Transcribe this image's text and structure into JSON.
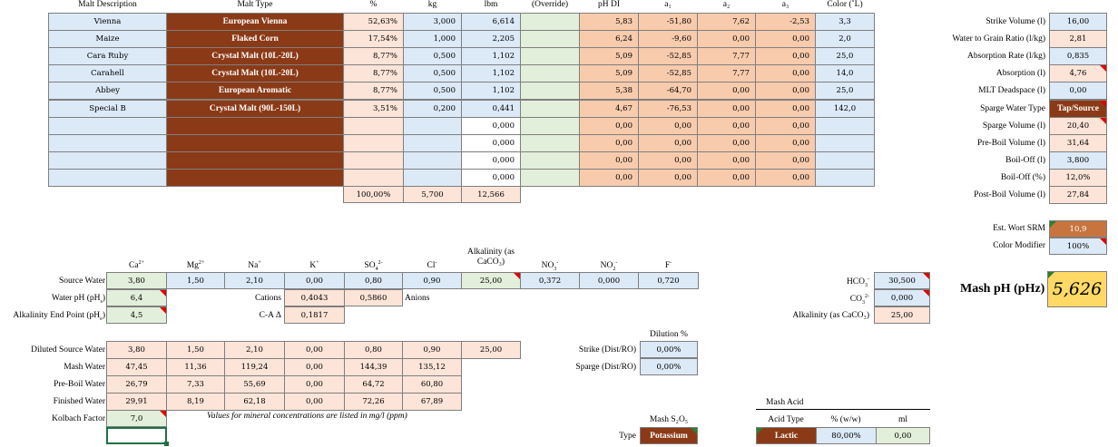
{
  "grain_bill": {
    "headers": [
      "Malt Description",
      "Malt Type",
      "%",
      "kg",
      "lbm",
      "(Override)",
      "pH DI",
      "a₁",
      "a₂",
      "a₃",
      "Color (˚L)"
    ],
    "rows": [
      {
        "desc": "Vienna",
        "type": "European Vienna",
        "pct": "52,63%",
        "kg": "3,000",
        "lbm": "6,614",
        "override": "",
        "ph": "5,83",
        "a1": "-51,80",
        "a2": "7,62",
        "a3": "-2,53",
        "color": "3,3"
      },
      {
        "desc": "Maize",
        "type": "Flaked Corn",
        "pct": "17,54%",
        "kg": "1,000",
        "lbm": "2,205",
        "override": "",
        "ph": "6,24",
        "a1": "-9,60",
        "a2": "0,00",
        "a3": "0,00",
        "color": "2,0"
      },
      {
        "desc": "Cara Ruby",
        "type": "Crystal Malt (10L-20L)",
        "pct": "8,77%",
        "kg": "0,500",
        "lbm": "1,102",
        "override": "",
        "ph": "5,09",
        "a1": "-52,85",
        "a2": "7,77",
        "a3": "0,00",
        "color": "25,0"
      },
      {
        "desc": "Carahell",
        "type": "Crystal Malt (10L-20L)",
        "pct": "8,77%",
        "kg": "0,500",
        "lbm": "1,102",
        "override": "",
        "ph": "5,09",
        "a1": "-52,85",
        "a2": "7,77",
        "a3": "0,00",
        "color": "14,0"
      },
      {
        "desc": "Abbey",
        "type": "European Aromatic",
        "pct": "8,77%",
        "kg": "0,500",
        "lbm": "1,102",
        "override": "",
        "ph": "5,38",
        "a1": "-64,70",
        "a2": "0,00",
        "a3": "0,00",
        "color": "25,0"
      },
      {
        "desc": "Special B",
        "type": "Crystal Malt (90L-150L)",
        "pct": "3,51%",
        "kg": "0,200",
        "lbm": "0,441",
        "override": "",
        "ph": "4,67",
        "a1": "-76,53",
        "a2": "0,00",
        "a3": "0,00",
        "color": "142,0"
      },
      {
        "desc": "",
        "type": "",
        "pct": "",
        "kg": "",
        "lbm": "0,000",
        "override": "",
        "ph": "0,00",
        "a1": "0,00",
        "a2": "0,00",
        "a3": "0,00",
        "color": ""
      },
      {
        "desc": "",
        "type": "",
        "pct": "",
        "kg": "",
        "lbm": "0,000",
        "override": "",
        "ph": "0,00",
        "a1": "0,00",
        "a2": "0,00",
        "a3": "0,00",
        "color": ""
      },
      {
        "desc": "",
        "type": "",
        "pct": "",
        "kg": "",
        "lbm": "0,000",
        "override": "",
        "ph": "0,00",
        "a1": "0,00",
        "a2": "0,00",
        "a3": "0,00",
        "color": ""
      },
      {
        "desc": "",
        "type": "",
        "pct": "",
        "kg": "",
        "lbm": "0,000",
        "override": "",
        "ph": "0,00",
        "a1": "0,00",
        "a2": "0,00",
        "a3": "0,00",
        "color": ""
      }
    ],
    "totals": {
      "pct": "100,00%",
      "kg": "5,700",
      "lbm": "12,566"
    }
  },
  "volumes": [
    {
      "label": "Strike Volume (l)",
      "value": "16,00"
    },
    {
      "label": "Water to Grain Ratio (l/kg)",
      "value": "2,81"
    },
    {
      "label": "Absorption Rate (l/kg)",
      "value": "0,835"
    },
    {
      "label": "Absorption (l)",
      "value": "4,76"
    },
    {
      "label": "MLT Deadspace (l)",
      "value": "0,00"
    },
    {
      "label": "Sparge Water Type",
      "value": "Tap/Source"
    },
    {
      "label": "Sparge Volume (l)",
      "value": "20,40"
    },
    {
      "label": "Pre-Boil Volume (l)",
      "value": "31,64"
    },
    {
      "label": "Boil-Off (l)",
      "value": "3,800"
    },
    {
      "label": "Boil-Off (%)",
      "value": "12,0%"
    },
    {
      "label": "Post-Boil Volume (l)",
      "value": "27,84"
    }
  ],
  "color_est": {
    "srm_label": "Est. Wort SRM",
    "srm": "10,9",
    "mod_label": "Color Modifier",
    "mod": "100%"
  },
  "mash_ph": {
    "label": "Mash pH (pHz)",
    "value": "5,626"
  },
  "water": {
    "ion_headers": [
      "Ca",
      "Mg",
      "Na",
      "K",
      "SO",
      "Cl",
      "Alkalinity (as CaCO₃)",
      "NO",
      "NO",
      "F"
    ],
    "source_label": "Source Water",
    "source": [
      "3,80",
      "1,50",
      "2,10",
      "0,00",
      "0,80",
      "0,90",
      "25,00",
      "0,372",
      "0,000",
      "0,720"
    ],
    "ph_label": "Water pH (pH",
    "ph": "6,4",
    "end_label": "Alkalinity End Point (pH",
    "end": "4,5",
    "cations_label": "Cations",
    "cations": "0,4043",
    "anions_label": "Anions",
    "anions": "0,5860",
    "ca_label": "C-A Δ",
    "ca": "0,1817"
  },
  "carbonate": {
    "hco3_label": "HCO",
    "hco3": "30,500",
    "co3_label": "CO",
    "co3": "0,000",
    "alk_label": "Alkalinity (as CaCO₃)",
    "alk": "25,00"
  },
  "dilution": {
    "title": "Dilution %",
    "strike_label": "Strike (Dist/RO)",
    "strike": "0,00%",
    "sparge_label": "Sparge (Dist/RO)",
    "sparge": "0,00%"
  },
  "diluted": [
    {
      "label": "Diluted Source Water",
      "values": [
        "3,80",
        "1,50",
        "2,10",
        "0,00",
        "0,80",
        "0,90",
        "25,00"
      ]
    },
    {
      "label": "Mash Water",
      "values": [
        "47,45",
        "11,36",
        "119,24",
        "0,00",
        "144,39",
        "135,12"
      ]
    },
    {
      "label": "Pre-Boil Water",
      "values": [
        "26,79",
        "7,33",
        "55,69",
        "0,00",
        "64,72",
        "60,80"
      ]
    },
    {
      "label": "Finished Water",
      "values": [
        "29,91",
        "8,19",
        "62,18",
        "0,00",
        "72,26",
        "67,89"
      ]
    }
  ],
  "kolbach": {
    "label": "Kolbach Factor",
    "value": "7,0",
    "note": "Values for mineral concentrations are listed in mg/l (ppm)"
  },
  "s2o5": {
    "title": "Mash S₂O₅",
    "type_label": "Type",
    "type": "Potassium"
  },
  "acid": {
    "title": "Mash Acid",
    "col1": "Acid Type",
    "col2": "% (w/w)",
    "col3": "ml",
    "type": "Lactic",
    "pct": "80,00%",
    "ml": "0,00"
  }
}
